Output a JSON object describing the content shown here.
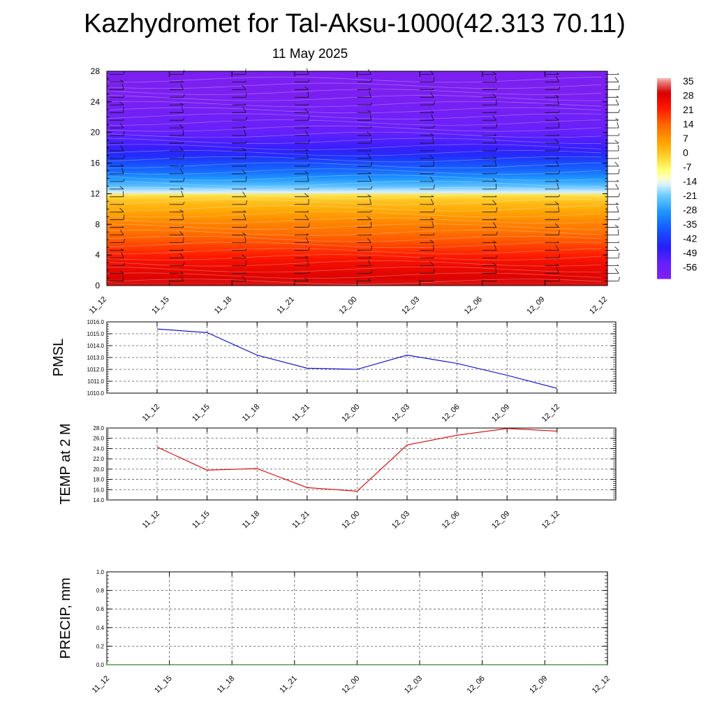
{
  "title": "Kazhydromet for Tal-Aksu-1000(42.313 70.11)",
  "date": "11 May 2025",
  "time_labels": [
    "11_12",
    "11_15",
    "11_18",
    "11_21",
    "12_00",
    "12_03",
    "12_06",
    "12_09",
    "12_12"
  ],
  "chart_data": [
    {
      "type": "heatmap",
      "name": "vertical-temperature-section",
      "x": [
        "11_12",
        "11_15",
        "11_18",
        "11_21",
        "12_00",
        "12_03",
        "12_06",
        "12_09",
        "12_12"
      ],
      "ylim": [
        0,
        28
      ],
      "yticks": [
        "0",
        "4",
        "8",
        "12",
        "16",
        "20",
        "24",
        "28"
      ],
      "colorbar": {
        "labels": [
          "35",
          "28",
          "21",
          "14",
          "7",
          "0",
          "-7",
          "-14",
          "-21",
          "-28",
          "-35",
          "-42",
          "-49",
          "-56"
        ],
        "range": [
          -60,
          36
        ]
      },
      "temperature_profile": {
        "y": [
          0,
          1,
          2,
          3,
          4,
          5,
          6,
          7,
          8,
          9,
          10,
          11,
          11.8,
          12.2,
          13,
          14,
          15,
          16,
          17,
          18,
          19,
          20,
          21,
          22,
          23,
          24,
          25,
          26,
          27,
          28
        ],
        "t": [
          30,
          28,
          26,
          24,
          21,
          18,
          15,
          12,
          10,
          7,
          4,
          1,
          -4,
          -15,
          -22,
          -28,
          -34,
          -38,
          -43,
          -47,
          -50,
          -53,
          -55,
          -56,
          -57,
          -58,
          -59,
          -59,
          -59,
          -59
        ]
      },
      "wind_barbs": "present"
    },
    {
      "type": "line",
      "name": "pmsl",
      "ylabel": "PMSL",
      "x": [
        "11_12",
        "11_15",
        "11_18",
        "11_21",
        "12_00",
        "12_03",
        "12_06",
        "12_09",
        "12_12"
      ],
      "ylim": [
        1010.0,
        1016.0
      ],
      "yticks": [
        "1010.0",
        "1011.0",
        "1012.0",
        "1013.0",
        "1014.0",
        "1015.0",
        "1016.0"
      ],
      "series": [
        {
          "values": [
            1015.4,
            1015.1,
            1013.2,
            1012.1,
            1012.0,
            1013.2,
            1012.5,
            1011.5,
            1010.4
          ],
          "color": "#0000cc"
        }
      ]
    },
    {
      "type": "line",
      "name": "temp-2m",
      "ylabel": "TEMP at 2 M",
      "x": [
        "11_12",
        "11_15",
        "11_18",
        "11_21",
        "12_00",
        "12_03",
        "12_06",
        "12_09",
        "12_12"
      ],
      "ylim": [
        14.0,
        28.0
      ],
      "yticks": [
        "14.0",
        "16.0",
        "18.0",
        "20.0",
        "22.0",
        "24.0",
        "26.0",
        "28.0"
      ],
      "series": [
        {
          "values": [
            24.3,
            19.8,
            20.1,
            16.4,
            15.7,
            24.7,
            26.6,
            27.9,
            27.4
          ],
          "color": "#dd0000"
        }
      ]
    },
    {
      "type": "line",
      "name": "precip",
      "ylabel": "PRECIP, mm",
      "x": [
        "11_12",
        "11_15",
        "11_18",
        "11_21",
        "12_00",
        "12_03",
        "12_06",
        "12_09",
        "12_12"
      ],
      "ylim": [
        0.0,
        1.0
      ],
      "yticks": [
        "0.0",
        "0.2",
        "0.4",
        "0.6",
        "0.8",
        "1.0"
      ],
      "series": [
        {
          "values": [
            0,
            0,
            0,
            0,
            0,
            0,
            0,
            0,
            0
          ],
          "color": "#006600"
        }
      ]
    }
  ]
}
